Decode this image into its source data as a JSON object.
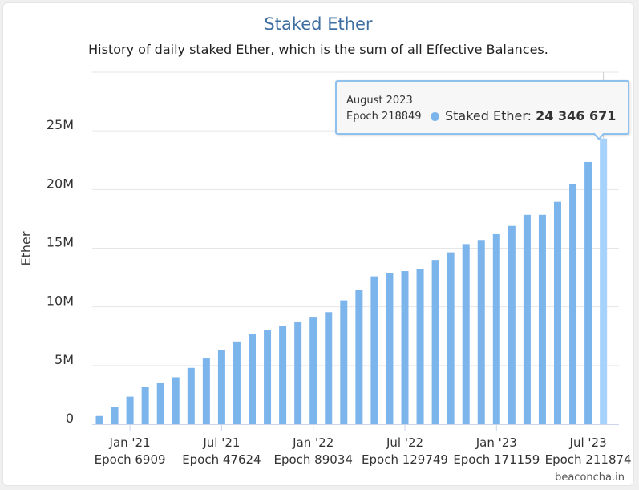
{
  "header": {
    "title": "Staked Ether",
    "subtitle": "History of daily staked Ether, which is the sum of all Effective Balances."
  },
  "credit": "beaconcha.in",
  "colors": {
    "bar": "#7cb5ec",
    "bar_highlight": "#a6d2fb",
    "title": "#3f6fa2",
    "grid": "#e6e6e6"
  },
  "tooltip": {
    "month": "August 2023",
    "epoch": "Epoch 218849",
    "series_label": "Staked Ether: ",
    "value": "24 346 671"
  },
  "chart_data": {
    "type": "bar",
    "ylabel": "Ether",
    "ylim": [
      0,
      30000000
    ],
    "y_ticks": [
      {
        "value": 0,
        "label": "0"
      },
      {
        "value": 5000000,
        "label": "5M"
      },
      {
        "value": 10000000,
        "label": "10M"
      },
      {
        "value": 15000000,
        "label": "15M"
      },
      {
        "value": 20000000,
        "label": "20M"
      },
      {
        "value": 25000000,
        "label": "25M"
      }
    ],
    "x_ticks": [
      {
        "month": "Jan '21",
        "epoch": "Epoch 6909",
        "index": 2
      },
      {
        "month": "Jul '21",
        "epoch": "Epoch 47624",
        "index": 8
      },
      {
        "month": "Jan '22",
        "epoch": "Epoch 89034",
        "index": 14
      },
      {
        "month": "Jul '22",
        "epoch": "Epoch 129749",
        "index": 20
      },
      {
        "month": "Jan '23",
        "epoch": "Epoch 171159",
        "index": 26
      },
      {
        "month": "Jul '23",
        "epoch": "Epoch 211874",
        "index": 32
      }
    ],
    "highlight_index": 33,
    "values": [
      700000,
      1450000,
      2350000,
      3200000,
      3500000,
      4000000,
      4800000,
      5600000,
      6350000,
      7050000,
      7700000,
      8000000,
      8350000,
      8750000,
      9150000,
      9550000,
      10550000,
      11450000,
      12600000,
      12850000,
      13050000,
      13250000,
      14000000,
      14650000,
      15350000,
      15700000,
      16200000,
      16900000,
      17850000,
      17850000,
      18950000,
      20450000,
      22350000,
      24346671
    ]
  }
}
